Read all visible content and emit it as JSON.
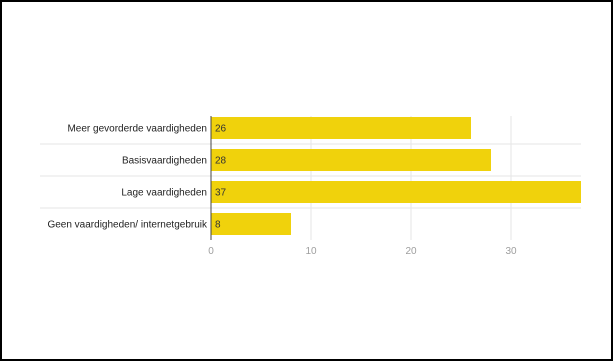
{
  "colors": {
    "bar": "#f0d20c",
    "grid": "#e6e6e6",
    "axis": "#444444",
    "border": "#000000"
  },
  "chart_data": {
    "type": "bar",
    "orientation": "horizontal",
    "title": "",
    "xlabel": "",
    "ylabel": "",
    "categories": [
      "Meer gevorderde vaardigheden",
      "Basisvaardigheden",
      "Lage vaardigheden",
      "Geen vaardigheden/ internetgebruik"
    ],
    "values": [
      26,
      28,
      37,
      8
    ],
    "data_labels": [
      "26",
      "28",
      "37",
      "8"
    ],
    "xlim": [
      0,
      37
    ],
    "xticks": [
      0,
      10,
      20,
      30
    ],
    "xtick_labels": [
      "0",
      "10",
      "20",
      "30"
    ],
    "grid": true,
    "legend": "none"
  }
}
